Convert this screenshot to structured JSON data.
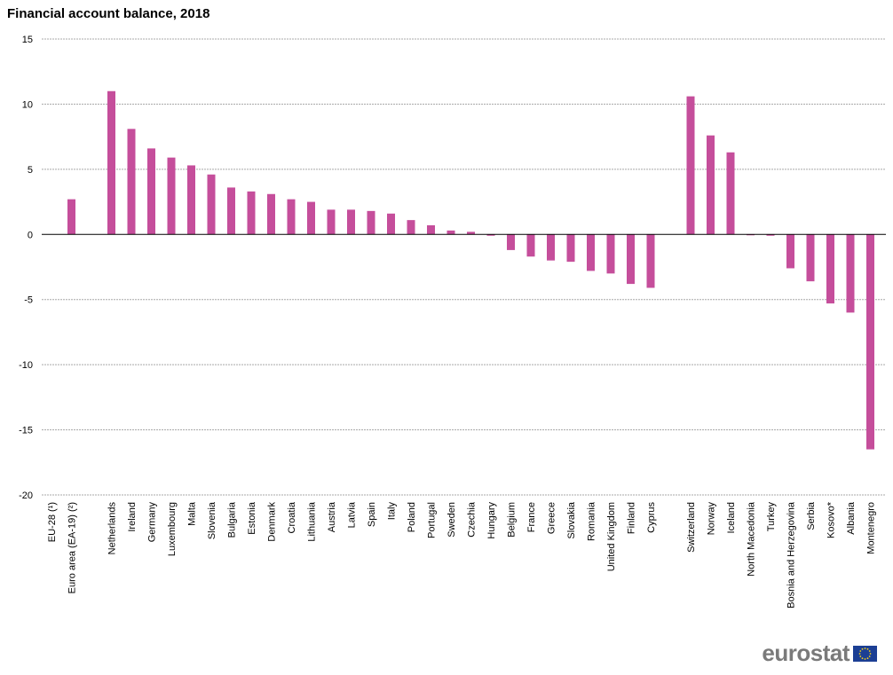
{
  "chart_data": {
    "type": "bar",
    "title": "Financial account balance, 2018",
    "xlabel": "",
    "ylabel": "",
    "ylim": [
      -20,
      15
    ],
    "yticks": [
      15,
      10,
      5,
      0,
      -5,
      -10,
      -15,
      -20
    ],
    "grid": true,
    "categories": [
      "EU-28 (¹)",
      "Euro area (EA-19) (²)",
      "Netherlands",
      "Ireland",
      "Germany",
      "Luxembourg",
      "Malta",
      "Slovenia",
      "Bulgaria",
      "Estonia",
      "Denmark",
      "Croatia",
      "Lithuania",
      "Austria",
      "Latvia",
      "Spain",
      "Italy",
      "Poland",
      "Portugal",
      "Sweden",
      "Czechia",
      "Hungary",
      "Belgium",
      "France",
      "Greece",
      "Slovakia",
      "Romania",
      "United Kingdom",
      "Finland",
      "Cyprus",
      "Switzerland",
      "Norway",
      "Iceland",
      "North Macedonia",
      "Turkey",
      "Bosnia and Herzegovina",
      "Serbia",
      "Kosovo*",
      "Albania",
      "Montenegro"
    ],
    "values": [
      null,
      2.7,
      11.0,
      8.1,
      6.6,
      5.9,
      5.3,
      4.6,
      3.6,
      3.3,
      3.1,
      2.7,
      2.5,
      1.9,
      1.9,
      1.8,
      1.6,
      1.1,
      0.7,
      0.3,
      0.2,
      -0.1,
      -1.2,
      -1.7,
      -2.0,
      -2.1,
      -2.8,
      -3.0,
      -3.8,
      -4.1,
      10.6,
      7.6,
      6.3,
      -0.05,
      -0.1,
      -2.6,
      -3.6,
      -5.3,
      -6.0,
      -16.5
    ],
    "series_color": "#c54e9b"
  },
  "logo": {
    "text": "eurostat"
  }
}
